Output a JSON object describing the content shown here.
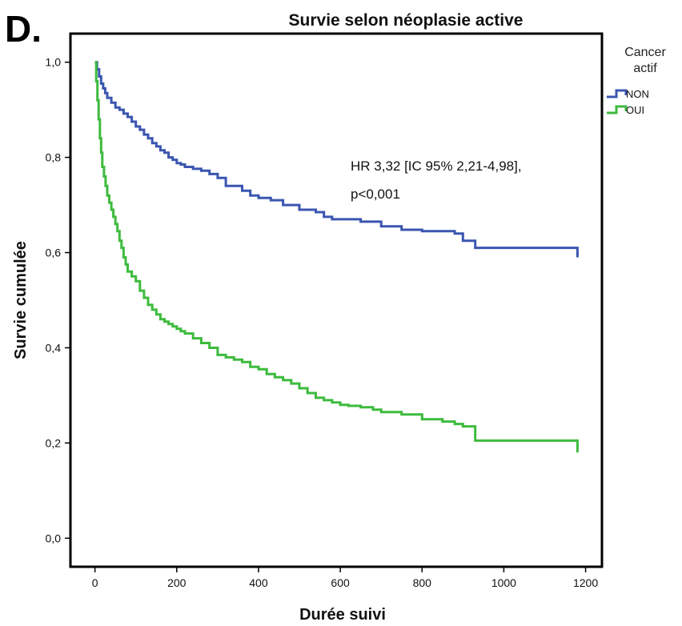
{
  "panel_label": "D.",
  "chart_data": {
    "type": "line",
    "title": "Survie selon néoplasie active",
    "xlabel": "Durée suivi",
    "ylabel": "Survie cumulée",
    "xlim": [
      -60,
      1240
    ],
    "ylim": [
      -0.06,
      1.06
    ],
    "xticks": [
      0,
      200,
      400,
      600,
      800,
      1000,
      1200
    ],
    "xtick_labels": [
      "0",
      "200",
      "400",
      "600",
      "800",
      "1000",
      "1200"
    ],
    "yticks": [
      0,
      0.2,
      0.4,
      0.6,
      0.8,
      1.0
    ],
    "ytick_labels": [
      "0,0",
      "0,2",
      "0,4",
      "0,6",
      "0,8",
      "1,0"
    ],
    "legend": {
      "title_lines": [
        "Cancer",
        "actif"
      ],
      "position": "right-outside"
    },
    "annotation_lines": [
      "HR 3,32 [IC 95% 2,21-4,98],",
      "p<0,001"
    ],
    "series": [
      {
        "name": "NON",
        "color": "#3a56b0",
        "step": true,
        "x": [
          0,
          5,
          10,
          15,
          20,
          25,
          30,
          40,
          50,
          60,
          70,
          80,
          90,
          100,
          110,
          120,
          130,
          140,
          150,
          160,
          170,
          180,
          190,
          200,
          210,
          220,
          240,
          260,
          280,
          300,
          320,
          340,
          360,
          380,
          400,
          430,
          460,
          500,
          540,
          560,
          580,
          600,
          650,
          700,
          750,
          800,
          850,
          880,
          900,
          930,
          1000,
          1100,
          1180
        ],
        "y": [
          1.0,
          0.985,
          0.97,
          0.955,
          0.945,
          0.935,
          0.925,
          0.915,
          0.905,
          0.9,
          0.892,
          0.885,
          0.875,
          0.865,
          0.858,
          0.848,
          0.84,
          0.83,
          0.823,
          0.815,
          0.81,
          0.8,
          0.795,
          0.788,
          0.785,
          0.78,
          0.776,
          0.772,
          0.765,
          0.757,
          0.74,
          0.74,
          0.73,
          0.72,
          0.715,
          0.71,
          0.7,
          0.69,
          0.685,
          0.675,
          0.67,
          0.67,
          0.665,
          0.655,
          0.648,
          0.645,
          0.645,
          0.64,
          0.625,
          0.61,
          0.61,
          0.61,
          0.59
        ]
      },
      {
        "name": "OUI",
        "color": "#3dbb3d",
        "step": true,
        "x": [
          0,
          3,
          6,
          9,
          12,
          15,
          18,
          22,
          26,
          30,
          35,
          40,
          45,
          50,
          55,
          60,
          65,
          70,
          75,
          80,
          90,
          100,
          110,
          120,
          130,
          140,
          150,
          160,
          170,
          180,
          190,
          200,
          210,
          220,
          240,
          260,
          280,
          300,
          320,
          340,
          360,
          380,
          400,
          420,
          440,
          460,
          480,
          500,
          520,
          540,
          560,
          580,
          600,
          620,
          650,
          680,
          700,
          750,
          800,
          850,
          880,
          900,
          930,
          1000,
          1100,
          1180
        ],
        "y": [
          1.0,
          0.96,
          0.92,
          0.88,
          0.84,
          0.81,
          0.78,
          0.76,
          0.74,
          0.72,
          0.705,
          0.69,
          0.675,
          0.66,
          0.645,
          0.625,
          0.61,
          0.59,
          0.575,
          0.56,
          0.55,
          0.54,
          0.52,
          0.505,
          0.49,
          0.48,
          0.47,
          0.46,
          0.455,
          0.45,
          0.445,
          0.44,
          0.435,
          0.43,
          0.42,
          0.41,
          0.4,
          0.385,
          0.38,
          0.375,
          0.37,
          0.36,
          0.355,
          0.345,
          0.338,
          0.332,
          0.325,
          0.315,
          0.305,
          0.295,
          0.29,
          0.285,
          0.28,
          0.278,
          0.275,
          0.27,
          0.265,
          0.26,
          0.25,
          0.245,
          0.24,
          0.235,
          0.205,
          0.205,
          0.205,
          0.18
        ]
      }
    ]
  }
}
